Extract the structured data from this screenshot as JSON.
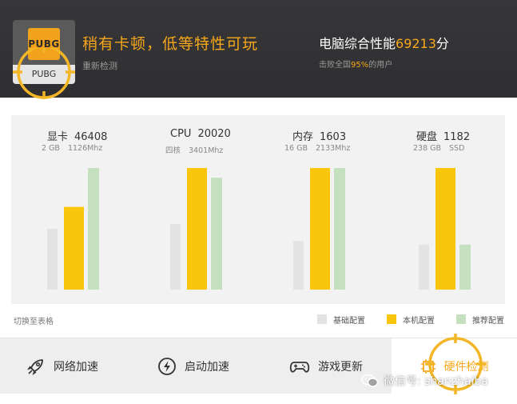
{
  "game": {
    "name": "PUBG",
    "logo_text": "PUBG"
  },
  "header": {
    "verdict": "稍有卡顿，低等特性可玩",
    "recheck_label": "重新检测",
    "perf_prefix": "电脑综合性能",
    "perf_score": "69213",
    "perf_suffix": "分",
    "beat_prefix": "击败全国",
    "beat_pct": "95%",
    "beat_suffix": "的用户"
  },
  "components": [
    {
      "name": "显卡",
      "score": "46408",
      "specs": [
        "2 GB",
        "1126Mhz"
      ]
    },
    {
      "name": "CPU",
      "score": "20020",
      "specs": [
        "四核",
        "3401Mhz"
      ]
    },
    {
      "name": "内存",
      "score": "1603",
      "specs": [
        "16 GB",
        "2133Mhz"
      ]
    },
    {
      "name": "硬盘",
      "score": "1182",
      "specs": [
        "238 GB",
        "SSD"
      ]
    }
  ],
  "chart_data": {
    "type": "bar",
    "categories": [
      "显卡",
      "CPU",
      "内存",
      "硬盘"
    ],
    "series": [
      {
        "name": "基础配置",
        "values": [
          0.5,
          0.54,
          0.4,
          0.37
        ]
      },
      {
        "name": "本机配置",
        "values": [
          0.68,
          1.0,
          1.0,
          1.0
        ]
      },
      {
        "name": "推荐配置",
        "values": [
          1.0,
          0.92,
          1.0,
          0.37
        ]
      }
    ],
    "ylim": [
      0,
      1
    ],
    "grid": false,
    "legend": "bottom-right"
  },
  "colors": {
    "base": "#e3e3e3",
    "mine": "#f9c60b",
    "recommended": "#c4e0bf",
    "accent": "#f7a81b",
    "header_bg": "#333234"
  },
  "switch_label": "切换至表格",
  "legend_labels": {
    "base": "基础配置",
    "mine": "本机配置",
    "recommended": "推荐配置"
  },
  "tabs": [
    {
      "label": "网络加速",
      "icon": "rocket-icon"
    },
    {
      "label": "启动加速",
      "icon": "lightning-icon"
    },
    {
      "label": "游戏更新",
      "icon": "gamepad-icon"
    },
    {
      "label": "硬件检测",
      "icon": "hardware-icon"
    }
  ],
  "watermark": "微信号: shanzhaiba"
}
